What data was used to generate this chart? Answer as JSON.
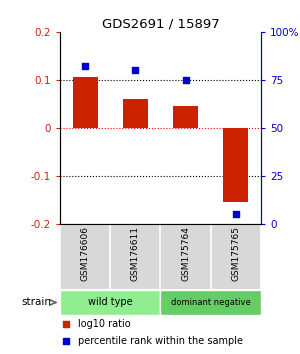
{
  "title": "GDS2691 / 15897",
  "samples": [
    "GSM176606",
    "GSM176611",
    "GSM175764",
    "GSM175765"
  ],
  "log10_ratios": [
    0.105,
    0.06,
    0.045,
    -0.155
  ],
  "percentile_ranks": [
    82,
    80,
    75,
    5
  ],
  "groups": [
    {
      "label": "wild type",
      "samples": [
        0,
        1
      ],
      "color": "#90ee90"
    },
    {
      "label": "dominant negative",
      "samples": [
        2,
        3
      ],
      "color": "#66cc66"
    }
  ],
  "bar_color": "#cc2200",
  "dot_color": "#0000cc",
  "ylim_left": [
    -0.2,
    0.2
  ],
  "ylim_right": [
    0,
    100
  ],
  "yticks_left": [
    -0.2,
    -0.1,
    0,
    0.1,
    0.2
  ],
  "ytick_labels_left": [
    "-0.2",
    "-0.1",
    "0",
    "0.1",
    "0.2"
  ],
  "yticks_right": [
    0,
    25,
    50,
    75,
    100
  ],
  "ytick_labels_right": [
    "0",
    "25",
    "50",
    "75",
    "100%"
  ],
  "hlines": [
    0.1,
    0.0,
    -0.1
  ],
  "hline_colors": [
    "black",
    "red",
    "black"
  ],
  "hline_styles": [
    "dotted",
    "dotted",
    "dotted"
  ],
  "bar_width": 0.5,
  "strain_label": "strain",
  "legend_items": [
    {
      "color": "#cc2200",
      "label": "log10 ratio"
    },
    {
      "color": "#0000cc",
      "label": "percentile rank within the sample"
    }
  ],
  "background_color": "#ffffff",
  "plot_bg": "#ffffff",
  "gray_bg": "#c8c8c8",
  "cell_bg": "#d8d8d8"
}
